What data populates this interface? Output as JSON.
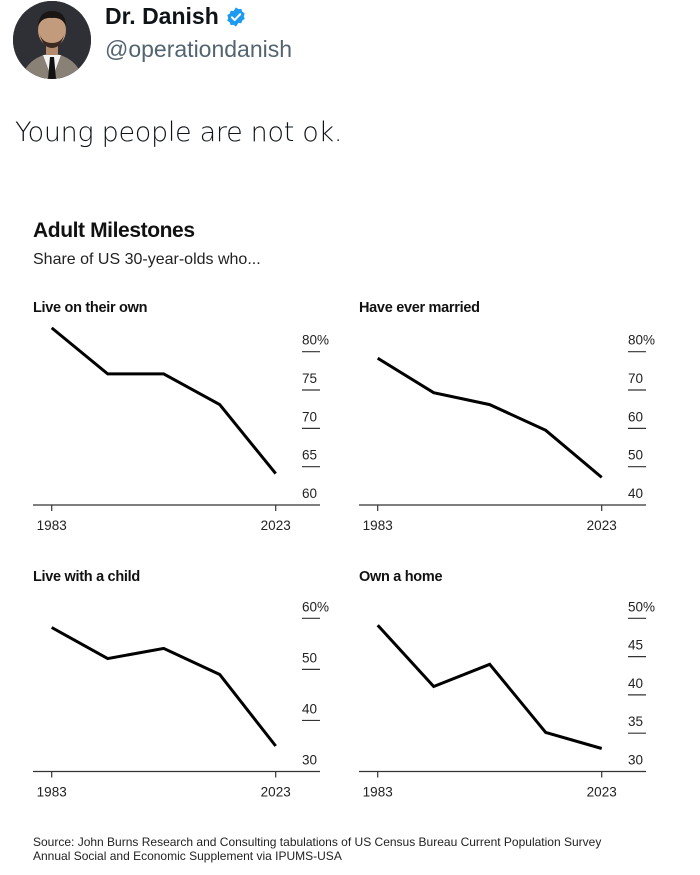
{
  "tweet": {
    "author_name": "Dr. Danish",
    "handle": "@operationdanish",
    "verified": true,
    "verified_color": "#1d9bf0",
    "text": "Young people are not ok."
  },
  "chart_data": {
    "title": "Adult Milestones",
    "subtitle": "Share of US 30-year-olds who...",
    "source_line1": "Source: John Burns Research and Consulting tabulations of US Census Bureau Current Population Survey",
    "source_line2": "Annual Social and Economic Supplement via IPUMS-USA",
    "panels": [
      {
        "type": "line",
        "title": "Live on their own",
        "x": [
          1983,
          1993,
          2003,
          2013,
          2023
        ],
        "values": [
          83.1,
          77.1,
          77.1,
          73.1,
          64.1
        ],
        "x_tick_labels": [
          "1983",
          "2023"
        ],
        "y_ticks": [
          80,
          75,
          70,
          65,
          60
        ],
        "y_tick_labels": [
          "80%",
          "75",
          "70",
          "65",
          "60"
        ],
        "ylim": [
          60,
          80
        ]
      },
      {
        "type": "line",
        "title": "Have ever married",
        "x": [
          1983,
          1993,
          2003,
          2013,
          2023
        ],
        "values": [
          78.3,
          69.3,
          66.2,
          59.5,
          47.2
        ],
        "x_tick_labels": [
          "1983",
          "2023"
        ],
        "y_ticks": [
          80,
          70,
          60,
          50,
          40
        ],
        "y_tick_labels": [
          "80%",
          "70",
          "60",
          "50",
          "40"
        ],
        "ylim": [
          40,
          80
        ]
      },
      {
        "type": "line",
        "title": "Live with a child",
        "x": [
          1983,
          1993,
          2003,
          2013,
          2023
        ],
        "values": [
          58.2,
          52.1,
          54.1,
          49.0,
          35.0
        ],
        "x_tick_labels": [
          "1983",
          "2023"
        ],
        "y_ticks": [
          60,
          50,
          40,
          30
        ],
        "y_tick_labels": [
          "60%",
          "50",
          "40",
          "30"
        ],
        "ylim": [
          30,
          60
        ]
      },
      {
        "type": "line",
        "title": "Own a home",
        "x": [
          1983,
          1993,
          2003,
          2013,
          2023
        ],
        "values": [
          49.1,
          41.1,
          44.0,
          35.1,
          33.0
        ],
        "x_tick_labels": [
          "1983",
          "2023"
        ],
        "y_ticks": [
          50,
          45,
          40,
          35,
          30
        ],
        "y_tick_labels": [
          "50%",
          "45",
          "40",
          "35",
          "30"
        ],
        "ylim": [
          30,
          50
        ]
      }
    ],
    "y_axis_position": "right",
    "grid": false,
    "line_color": "#000000"
  }
}
